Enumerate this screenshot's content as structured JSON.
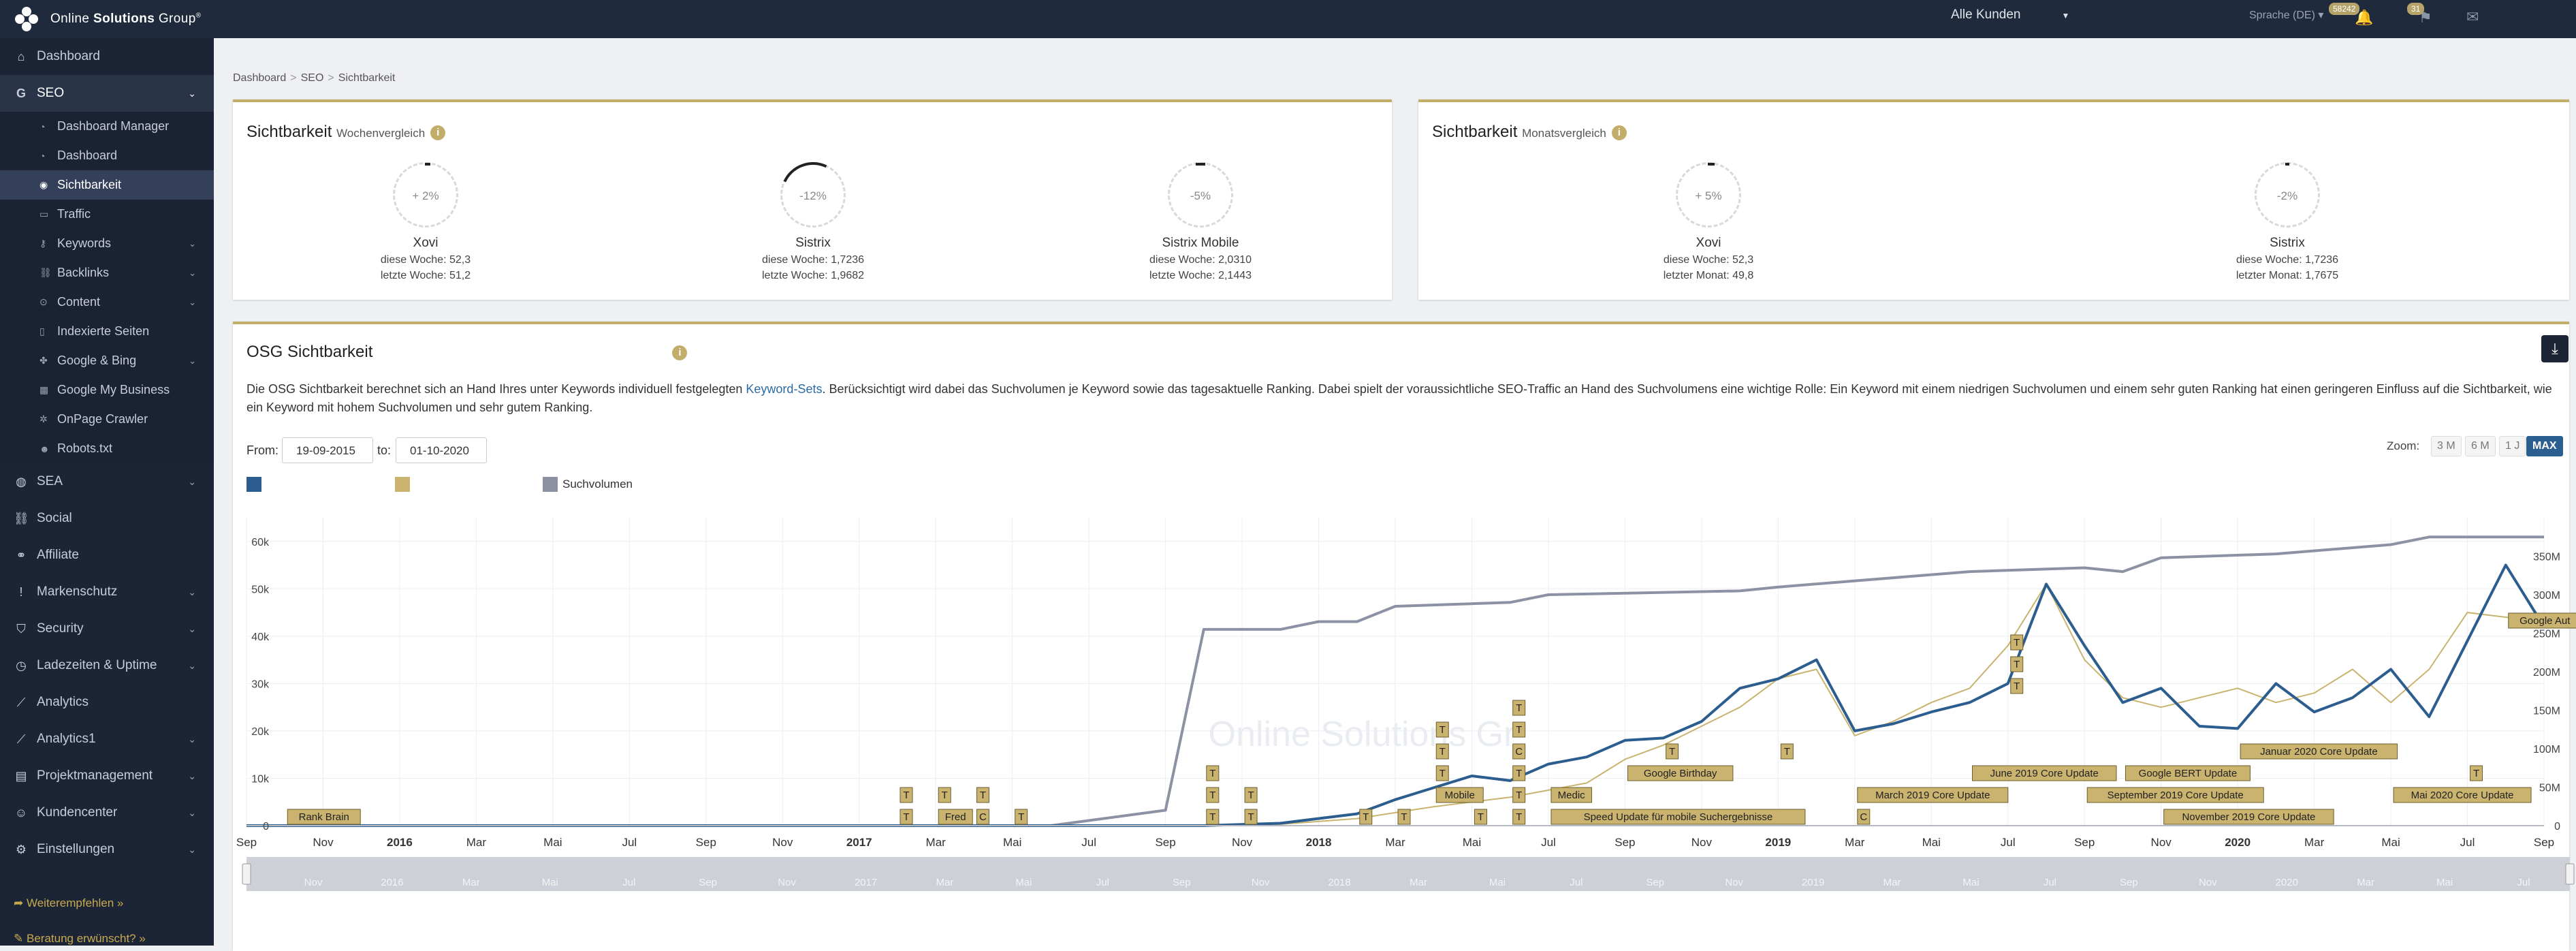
{
  "topbar": {
    "brand_prefix": "Online",
    "brand_bold": "Solutions",
    "brand_suffix": "Group",
    "customer_select": "Alle Kunden",
    "language": "Sprache (DE)",
    "badge_1": "58242",
    "badge_2": "31"
  },
  "sidebar": {
    "items": [
      {
        "label": "Dashboard",
        "icon": "home-icon"
      },
      {
        "label": "SEO",
        "icon": "google-icon"
      },
      {
        "label": "SEA",
        "icon": "globe-icon"
      },
      {
        "label": "Social",
        "icon": "link-icon"
      },
      {
        "label": "Affiliate",
        "icon": "handshake-icon"
      },
      {
        "label": "Markenschutz",
        "icon": "exclamation-icon"
      },
      {
        "label": "Security",
        "icon": "shield-icon"
      },
      {
        "label": "Ladezeiten & Uptime",
        "icon": "clock-icon"
      },
      {
        "label": "Analytics",
        "icon": "chart-line-icon"
      },
      {
        "label": "Analytics1",
        "icon": "chart-line-icon"
      },
      {
        "label": "Projektmanagement",
        "icon": "briefcase-icon"
      },
      {
        "label": "Kundencenter",
        "icon": "users-icon"
      },
      {
        "label": "Einstellungen",
        "icon": "gear-icon"
      }
    ],
    "seo_sub": [
      "Dashboard Manager",
      "Dashboard",
      "Sichtbarkeit",
      "Traffic",
      "Keywords",
      "Backlinks",
      "Content",
      "Indexierte Seiten",
      "Google & Bing",
      "Google My Business",
      "OnPage Crawler",
      "Robots.txt"
    ],
    "footer_1": "Weiterempfehlen »",
    "footer_2": "Beratung erwünscht? »"
  },
  "breadcrumb": [
    "Dashboard",
    "SEO",
    "Sichtbarkeit"
  ],
  "weekly": {
    "title": "Sichtbarkeit",
    "subtitle": "Wochenvergleich",
    "gauges": [
      {
        "name": "Xovi",
        "pct": "+ 2%",
        "line1": "diese Woche: 52,3",
        "line2": "letzte Woche: 51,2"
      },
      {
        "name": "Sistrix",
        "pct": "-12%",
        "line1": "diese Woche: 1,7236",
        "line2": "letzte Woche: 1,9682"
      },
      {
        "name": "Sistrix Mobile",
        "pct": "-5%",
        "line1": "diese Woche: 2,0310",
        "line2": "letzte Woche: 2,1443"
      }
    ]
  },
  "monthly": {
    "title": "Sichtbarkeit",
    "subtitle": "Monatsvergleich",
    "gauges": [
      {
        "name": "Xovi",
        "pct": "+ 5%",
        "line1": "diese Woche: 52,3",
        "line2": "letzter Monat: 49,8"
      },
      {
        "name": "Sistrix",
        "pct": "-2%",
        "line1": "diese Woche: 1,7236",
        "line2": "letzter Monat: 1,7675"
      }
    ]
  },
  "osg": {
    "title": "OSG Sichtbarkeit",
    "desc_1": "Die OSG Sichtbarkeit berechnet sich an Hand Ihres unter Keywords individuell festgelegten ",
    "desc_link": "Keyword-Sets",
    "desc_2": ". Berücksichtigt wird dabei das Suchvolumen je Keyword sowie das tagesaktuelle Ranking. Dabei spielt der voraussichtliche SEO-Traffic an Hand des Suchvolumens eine wichtige Rolle: Ein Keyword mit einem niedrigen Suchvolumen und einem sehr guten Ranking hat einen geringeren Einfluss auf die Sichtbarkeit, wie ein Keyword mit hohem Suchvolumen und sehr gutem Ranking.",
    "from_label": "From:",
    "from_value": "19-09-2015",
    "to_label": "to:",
    "to_value": "01-10-2020",
    "zoom_label": "Zoom:",
    "zoom_buttons": [
      "3 M",
      "6 M",
      "1 J",
      "MAX"
    ],
    "legend_3": "Suchvolumen",
    "watermark": "Online Solutions Gr"
  },
  "chart_data": {
    "type": "line",
    "x_ticks": [
      "Sep",
      "Nov",
      "2016",
      "Mar",
      "Mai",
      "Jul",
      "Sep",
      "Nov",
      "2017",
      "Mar",
      "Mai",
      "Jul",
      "Sep",
      "Nov",
      "2018",
      "Mar",
      "Mai",
      "Jul",
      "Sep",
      "Nov",
      "2019",
      "Mar",
      "Mai",
      "Jul",
      "Sep",
      "Nov",
      "2020",
      "Mar",
      "Mai",
      "Jul",
      "Sep"
    ],
    "navigator_ticks": [
      "Nov",
      "2016",
      "Mar",
      "Mai",
      "Jul",
      "Sep",
      "Nov",
      "2017",
      "Mar",
      "Mai",
      "Jul",
      "Sep",
      "Nov",
      "2018",
      "Mar",
      "Mai",
      "Jul",
      "Sep",
      "Nov",
      "2019",
      "Mar",
      "Mai",
      "Jul",
      "Sep",
      "Nov",
      "2020",
      "Mar",
      "Mai",
      "Jul"
    ],
    "y_left_ticks": [
      "0",
      "10k",
      "20k",
      "30k",
      "40k",
      "50k",
      "60k"
    ],
    "y_left_range": [
      0,
      65000
    ],
    "y_right_ticks": [
      "0",
      "50M",
      "100M",
      "150M",
      "200M",
      "250M",
      "300M",
      "350M"
    ],
    "y_right_range": [
      0,
      400000000
    ],
    "x_range": [
      "2015-09",
      "2020-09"
    ],
    "series": [
      {
        "color": "#2c5d8f",
        "axis": "left",
        "points": [
          [
            "2015-09",
            0
          ],
          [
            "2016-06",
            0
          ],
          [
            "2017-06",
            0
          ],
          [
            "2017-10",
            0
          ],
          [
            "2017-12",
            500
          ],
          [
            "2018-02",
            2500
          ],
          [
            "2018-03",
            5500
          ],
          [
            "2018-04",
            8000
          ],
          [
            "2018-05",
            10500
          ],
          [
            "2018-06",
            9500
          ],
          [
            "2018-07",
            13000
          ],
          [
            "2018-08",
            14500
          ],
          [
            "2018-09",
            18000
          ],
          [
            "2018-10",
            18500
          ],
          [
            "2018-11",
            22000
          ],
          [
            "2018-12",
            29000
          ],
          [
            "2019-01",
            31000
          ],
          [
            "2019-02",
            35000
          ],
          [
            "2019-03",
            20000
          ],
          [
            "2019-04",
            21500
          ],
          [
            "2019-05",
            24000
          ],
          [
            "2019-06",
            26000
          ],
          [
            "2019-07",
            30000
          ],
          [
            "2019-08",
            51000
          ],
          [
            "2019-09",
            38000
          ],
          [
            "2019-10",
            26000
          ],
          [
            "2019-11",
            29000
          ],
          [
            "2019-12",
            21000
          ],
          [
            "2020-01",
            20500
          ],
          [
            "2020-02",
            30000
          ],
          [
            "2020-03",
            24000
          ],
          [
            "2020-04",
            27000
          ],
          [
            "2020-05",
            33000
          ],
          [
            "2020-06",
            23000
          ],
          [
            "2020-07",
            39000
          ],
          [
            "2020-08",
            55000
          ],
          [
            "2020-09",
            42000
          ]
        ]
      },
      {
        "color": "#c9b36f",
        "axis": "left",
        "points": [
          [
            "2015-09",
            0
          ],
          [
            "2017-06",
            0
          ],
          [
            "2017-10",
            0
          ],
          [
            "2017-12",
            300
          ],
          [
            "2018-02",
            1500
          ],
          [
            "2018-04",
            4000
          ],
          [
            "2018-06",
            6000
          ],
          [
            "2018-08",
            9000
          ],
          [
            "2018-09",
            14000
          ],
          [
            "2018-10",
            17000
          ],
          [
            "2018-11",
            21000
          ],
          [
            "2018-12",
            25000
          ],
          [
            "2019-01",
            31000
          ],
          [
            "2019-02",
            33000
          ],
          [
            "2019-03",
            19000
          ],
          [
            "2019-04",
            22000
          ],
          [
            "2019-05",
            26000
          ],
          [
            "2019-06",
            29000
          ],
          [
            "2019-07",
            38000
          ],
          [
            "2019-08",
            51000
          ],
          [
            "2019-09",
            35000
          ],
          [
            "2019-10",
            27000
          ],
          [
            "2019-11",
            25000
          ],
          [
            "2019-12",
            27000
          ],
          [
            "2020-01",
            29000
          ],
          [
            "2020-02",
            26000
          ],
          [
            "2020-03",
            28000
          ],
          [
            "2020-04",
            33000
          ],
          [
            "2020-05",
            26000
          ],
          [
            "2020-06",
            33000
          ],
          [
            "2020-07",
            45000
          ],
          [
            "2020-08",
            44000
          ],
          [
            "2020-09",
            43000
          ]
        ]
      },
      {
        "name": "Suchvolumen",
        "color": "#8c92a3",
        "axis": "right",
        "points": [
          [
            "2015-09",
            0
          ],
          [
            "2017-06",
            0
          ],
          [
            "2017-09",
            20000000
          ],
          [
            "2017-10",
            255000000
          ],
          [
            "2017-12",
            255000000
          ],
          [
            "2018-01",
            265000000
          ],
          [
            "2018-02",
            265000000
          ],
          [
            "2018-03",
            285000000
          ],
          [
            "2018-06",
            290000000
          ],
          [
            "2018-07",
            300000000
          ],
          [
            "2018-12",
            305000000
          ],
          [
            "2019-01",
            310000000
          ],
          [
            "2019-06",
            330000000
          ],
          [
            "2019-09",
            335000000
          ],
          [
            "2019-10",
            330000000
          ],
          [
            "2019-11",
            348000000
          ],
          [
            "2020-02",
            353000000
          ],
          [
            "2020-05",
            365000000
          ],
          [
            "2020-06",
            375000000
          ],
          [
            "2020-09",
            375000000
          ]
        ]
      }
    ],
    "flags": [
      {
        "date": "2015-10",
        "label": "Rank Brain",
        "y": 0
      },
      {
        "date": "2017-02",
        "label": "T",
        "y": 0
      },
      {
        "date": "2017-02",
        "label": "T",
        "y": 1
      },
      {
        "date": "2017-03",
        "label": "T",
        "y": 1
      },
      {
        "date": "2017-03",
        "label": "Fred",
        "y": 0
      },
      {
        "date": "2017-04",
        "label": "T",
        "y": 1
      },
      {
        "date": "2017-04",
        "label": "C",
        "y": 0
      },
      {
        "date": "2017-05",
        "label": "T",
        "y": 0
      },
      {
        "date": "2017-10",
        "label": "T",
        "y": 0
      },
      {
        "date": "2017-10",
        "label": "T",
        "y": 1
      },
      {
        "date": "2017-10",
        "label": "T",
        "y": 2
      },
      {
        "date": "2017-11",
        "label": "T",
        "y": 0
      },
      {
        "date": "2017-11",
        "label": "T",
        "y": 1
      },
      {
        "date": "2018-02",
        "label": "T",
        "y": 0
      },
      {
        "date": "2018-03",
        "label": "T",
        "y": 0
      },
      {
        "date": "2018-04",
        "label": "Mobile",
        "y": 1
      },
      {
        "date": "2018-04",
        "label": "T",
        "y": 2
      },
      {
        "date": "2018-04",
        "label": "T",
        "y": 3
      },
      {
        "date": "2018-04",
        "label": "T",
        "y": 4
      },
      {
        "date": "2018-05",
        "label": "T",
        "y": 0
      },
      {
        "date": "2018-06",
        "label": "T",
        "y": 0
      },
      {
        "date": "2018-06",
        "label": "T",
        "y": 1
      },
      {
        "date": "2018-06",
        "label": "T",
        "y": 2
      },
      {
        "date": "2018-06",
        "label": "C",
        "y": 3
      },
      {
        "date": "2018-06",
        "label": "T",
        "y": 4
      },
      {
        "date": "2018-06",
        "label": "T",
        "y": 5
      },
      {
        "date": "2018-07",
        "label": "Medic",
        "y": 1
      },
      {
        "date": "2018-07",
        "label": "Speed Update für mobile Suchergebnisse",
        "y": 0
      },
      {
        "date": "2018-09",
        "label": "Google Birthday",
        "y": 2
      },
      {
        "date": "2018-10",
        "label": "T",
        "y": 3
      },
      {
        "date": "2019-01",
        "label": "T",
        "y": 3
      },
      {
        "date": "2019-03",
        "label": "C",
        "y": 0
      },
      {
        "date": "2019-03",
        "label": "March 2019 Core Update",
        "y": 1
      },
      {
        "date": "2019-06",
        "label": "June 2019 Core Update",
        "y": 2
      },
      {
        "date": "2019-07",
        "label": "T",
        "y": 6
      },
      {
        "date": "2019-07",
        "label": "T",
        "y": 7
      },
      {
        "date": "2019-07",
        "label": "T",
        "y": 8
      },
      {
        "date": "2019-09",
        "label": "September 2019 Core Update",
        "y": 1
      },
      {
        "date": "2019-10",
        "label": "Google BERT Update",
        "y": 2
      },
      {
        "date": "2019-11",
        "label": "November 2019 Core Update",
        "y": 0
      },
      {
        "date": "2020-01",
        "label": "Januar 2020 Core Update",
        "y": 3
      },
      {
        "date": "2020-05",
        "label": "Mai 2020 Core Update",
        "y": 1
      },
      {
        "date": "2020-07",
        "label": "T",
        "y": 2
      },
      {
        "date": "2020-08",
        "label": "Google Aut",
        "y": 9
      }
    ]
  }
}
